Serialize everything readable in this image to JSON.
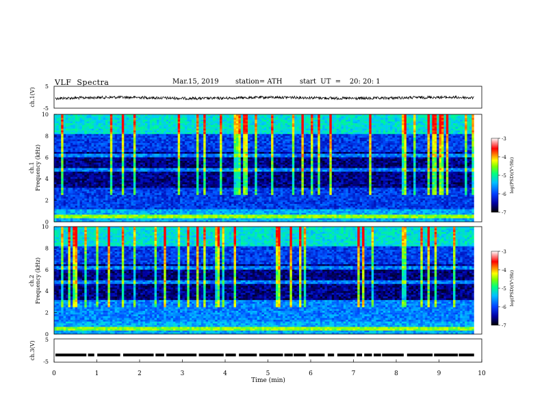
{
  "header": {
    "title": "VLF  Spectra",
    "date": "Mar.15, 2019",
    "station": "station= ATH",
    "start": "start  UT  =    20: 20: 1"
  },
  "chart_data": [
    {
      "type": "line",
      "name": "ch1-waveform",
      "ylabel": "ch.1(V)",
      "ylim": [
        -5,
        5
      ],
      "yticks": [
        "5",
        "-5"
      ],
      "xlim": [
        0,
        10
      ],
      "trace_level": -0.3,
      "trace_color": "#000000"
    },
    {
      "type": "heatmap",
      "name": "ch1-spectrogram",
      "ylabel_top": "ch.1",
      "ylabel": "Frequency  (kHz)",
      "ylim": [
        0,
        10
      ],
      "yticks": [
        "0",
        "2",
        "4",
        "6",
        "8",
        "10"
      ],
      "xlim": [
        0,
        9.82
      ],
      "colorbar": {
        "label": "log(PSD)(V²/Hz)",
        "range": [
          -7,
          -3
        ],
        "ticks": [
          "-3",
          "-4",
          "-5",
          "-6",
          "-7"
        ]
      }
    },
    {
      "type": "heatmap",
      "name": "ch2-spectrogram",
      "ylabel_top": "ch.2",
      "ylabel": "Frequency  (kHz)",
      "ylim": [
        0,
        10
      ],
      "yticks": [
        "0",
        "2",
        "4",
        "6",
        "8",
        "10"
      ],
      "xlim": [
        0,
        9.82
      ],
      "colorbar": {
        "label": "log(PSD)(V²/Hz)",
        "range": [
          -7,
          -3
        ],
        "ticks": [
          "-3",
          "-4",
          "-5",
          "-6",
          "-7"
        ]
      }
    },
    {
      "type": "line",
      "name": "ch3-signal",
      "ylabel": "ch.3(V)",
      "ylim": [
        -5,
        5
      ],
      "yticks": [
        "5",
        "-5"
      ],
      "xlim": [
        0,
        10
      ],
      "trace_level": -1.9,
      "trace_color": "#000000"
    }
  ],
  "x_axis": {
    "label": "Time  (min)",
    "range": [
      0,
      10
    ],
    "ticks": [
      "0",
      "1",
      "2",
      "3",
      "4",
      "5",
      "6",
      "7",
      "8",
      "9",
      "10"
    ]
  },
  "colors": {
    "background_dark": "#00001a",
    "colormap": [
      "#000000",
      "#0000a8",
      "#0050ff",
      "#00c8ff",
      "#00ff80",
      "#a0ff00",
      "#ffff00",
      "#ff8000",
      "#ff0000",
      "#ffffff"
    ]
  }
}
